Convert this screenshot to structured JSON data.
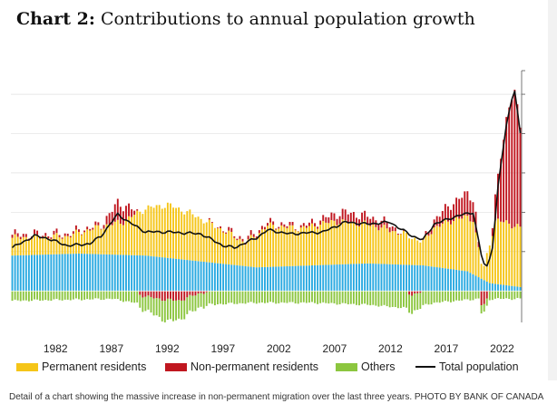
{
  "page": {
    "title_prefix": "Chart 2:",
    "title_text": "Contributions to annual population growth",
    "caption": "Detail of a chart showing the massive increase in non-permanent migration over the last three years. PHOTO BY BANK OF CANADA"
  },
  "colors": {
    "permanent": "#f5c518",
    "nonpermanent": "#c0161f",
    "others": "#8cc63f",
    "blue": "#29a9e1",
    "total": "#111111"
  },
  "chart_data": {
    "type": "bar",
    "title": "Contributions to annual population growth",
    "stacked": true,
    "frequency": "quarterly",
    "x_start": 1978,
    "x_end": 2023.75,
    "ylim": [
      -0.8,
      5.6
    ],
    "y_gridlines": [
      1,
      2,
      3,
      4,
      5
    ],
    "x_tick_labels": [
      "1982",
      "1987",
      "1992",
      "1997",
      "2002",
      "2007",
      "2012",
      "2017",
      "2022"
    ],
    "x_tick_values": [
      1982,
      1987,
      1992,
      1997,
      2002,
      2007,
      2012,
      2017,
      2022
    ],
    "legend": [
      {
        "label": "Permanent residents",
        "kind": "bar",
        "color": "#f5c518"
      },
      {
        "label": "Non-permanent residents",
        "kind": "bar",
        "color": "#c0161f"
      },
      {
        "label": "Others",
        "kind": "bar",
        "color": "#8cc63f"
      },
      {
        "label": "Total population",
        "kind": "line",
        "color": "#111111"
      }
    ],
    "series_shape": {
      "blue_component": [
        [
          1978,
          0.9
        ],
        [
          1984,
          0.95
        ],
        [
          1990,
          0.9
        ],
        [
          1995,
          0.75
        ],
        [
          2000,
          0.6
        ],
        [
          2005,
          0.65
        ],
        [
          2010,
          0.7
        ],
        [
          2015,
          0.65
        ],
        [
          2019,
          0.5
        ],
        [
          2021,
          0.2
        ],
        [
          2023.75,
          0.1
        ]
      ],
      "others": [
        [
          1978,
          -0.25
        ],
        [
          1987,
          -0.2
        ],
        [
          1990,
          -0.35
        ],
        [
          1992,
          -0.55
        ],
        [
          1995,
          -0.35
        ],
        [
          2000,
          -0.3
        ],
        [
          2005,
          -0.3
        ],
        [
          2010,
          -0.35
        ],
        [
          2014,
          -0.45
        ],
        [
          2016,
          -0.3
        ],
        [
          2020,
          -0.2
        ],
        [
          2023.75,
          -0.2
        ]
      ],
      "permanent_residents": [
        [
          1978,
          0.45
        ],
        [
          1983,
          0.45
        ],
        [
          1986,
          0.7
        ],
        [
          1988,
          0.85
        ],
        [
          1990,
          1.2
        ],
        [
          1992,
          1.35
        ],
        [
          1994,
          1.2
        ],
        [
          1997,
          0.85
        ],
        [
          1999,
          0.6
        ],
        [
          2001,
          1.05
        ],
        [
          2004,
          0.95
        ],
        [
          2007,
          1.1
        ],
        [
          2010,
          1.0
        ],
        [
          2013,
          0.8
        ],
        [
          2015,
          0.6
        ],
        [
          2016,
          1.0
        ],
        [
          2018,
          1.3
        ],
        [
          2019.5,
          1.4
        ],
        [
          2020.4,
          0.2
        ],
        [
          2021,
          1.0
        ],
        [
          2021.5,
          1.6
        ],
        [
          2022.5,
          1.6
        ],
        [
          2023.75,
          1.5
        ]
      ],
      "non_permanent_residents": [
        [
          1978,
          0.08
        ],
        [
          1986,
          0.05
        ],
        [
          1987.5,
          0.5
        ],
        [
          1988.5,
          0.3
        ],
        [
          1989.5,
          -0.1
        ],
        [
          1991,
          -0.2
        ],
        [
          1993,
          -0.25
        ],
        [
          1995,
          -0.05
        ],
        [
          1997,
          0.05
        ],
        [
          2000,
          0.08
        ],
        [
          2004,
          0.05
        ],
        [
          2006,
          0.12
        ],
        [
          2008,
          0.25
        ],
        [
          2010,
          0.2
        ],
        [
          2012,
          0.15
        ],
        [
          2014,
          -0.1
        ],
        [
          2015,
          0.0
        ],
        [
          2016,
          0.2
        ],
        [
          2017,
          0.35
        ],
        [
          2019,
          0.6
        ],
        [
          2019.8,
          0.5
        ],
        [
          2020.3,
          -0.45
        ],
        [
          2020.8,
          -0.2
        ],
        [
          2021.3,
          0.3
        ],
        [
          2021.8,
          1.2
        ],
        [
          2022.5,
          2.6
        ],
        [
          2023.2,
          3.6
        ],
        [
          2023.75,
          2.5
        ]
      ],
      "total_population": [
        [
          1978,
          1.1
        ],
        [
          1980,
          1.4
        ],
        [
          1981,
          1.35
        ],
        [
          1983,
          1.15
        ],
        [
          1985,
          1.2
        ],
        [
          1986,
          1.4
        ],
        [
          1987.5,
          1.95
        ],
        [
          1988.5,
          1.75
        ],
        [
          1990,
          1.5
        ],
        [
          1992,
          1.5
        ],
        [
          1995,
          1.45
        ],
        [
          1997,
          1.15
        ],
        [
          1998,
          1.1
        ],
        [
          2000,
          1.35
        ],
        [
          2001,
          1.55
        ],
        [
          2003,
          1.45
        ],
        [
          2006,
          1.5
        ],
        [
          2008,
          1.75
        ],
        [
          2010,
          1.7
        ],
        [
          2012,
          1.75
        ],
        [
          2014,
          1.4
        ],
        [
          2015,
          1.3
        ],
        [
          2016,
          1.7
        ],
        [
          2018,
          1.9
        ],
        [
          2019.5,
          2.0
        ],
        [
          2020.4,
          0.7
        ],
        [
          2020.8,
          0.6
        ],
        [
          2021.3,
          1.2
        ],
        [
          2021.8,
          2.8
        ],
        [
          2022.5,
          4.2
        ],
        [
          2023.2,
          5.2
        ],
        [
          2023.75,
          4.0
        ]
      ]
    }
  }
}
